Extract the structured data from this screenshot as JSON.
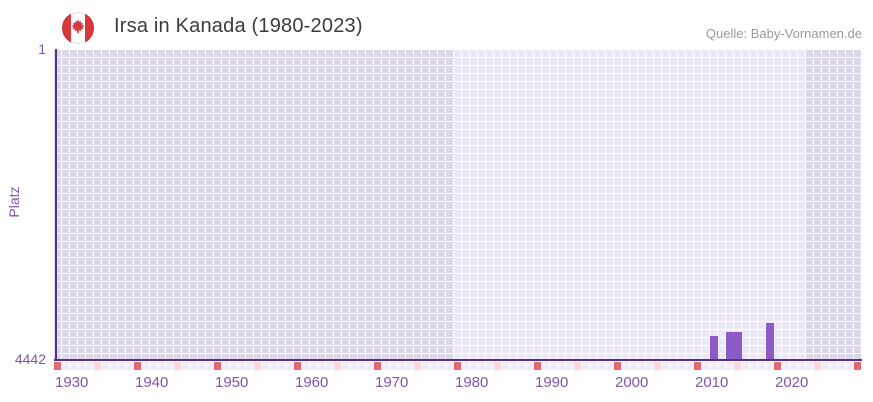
{
  "header": {
    "title": "Irsa in Kanada (1980-2023)",
    "source": "Quelle: Baby-Vornamen.de",
    "flag": "canada-flag-icon"
  },
  "chart_data": {
    "type": "bar",
    "title": "Irsa in Kanada (1980-2023)",
    "ylabel": "Platz",
    "xlabel": "",
    "y_axis": {
      "top_label": "1",
      "bottom_label": "4442",
      "min": 1,
      "max": 4442,
      "inverted": true
    },
    "x_axis": {
      "start_year": 1930,
      "end_year": 2030,
      "tick_years": [
        1930,
        1940,
        1950,
        1960,
        1970,
        1980,
        1990,
        2000,
        2010,
        2020
      ],
      "data_range_start": 1980,
      "data_range_end": 2023
    },
    "series": [
      {
        "name": "Platz",
        "points": [
          {
            "year": 2012,
            "rank": 4113
          },
          {
            "year": 2014,
            "rank": 4055
          },
          {
            "year": 2015,
            "rank": 4055
          },
          {
            "year": 2019,
            "rank": 3926
          }
        ]
      }
    ],
    "legend": "none",
    "grid": "on",
    "colors": {
      "bar": "#8d5bc7",
      "axis_line": "#53318f",
      "tick_label": "#7e58a8",
      "cell_in_range": "#ebe7f5",
      "cell_out_of_range": "#dbd7e8",
      "strip_year": "#f1eef8",
      "strip_half_decade": "#f6d8e0",
      "strip_decade": "#e2696e",
      "title_text": "#3b3b3b",
      "source_text": "#9b9b9b",
      "flag_red": "#d6383e"
    }
  }
}
